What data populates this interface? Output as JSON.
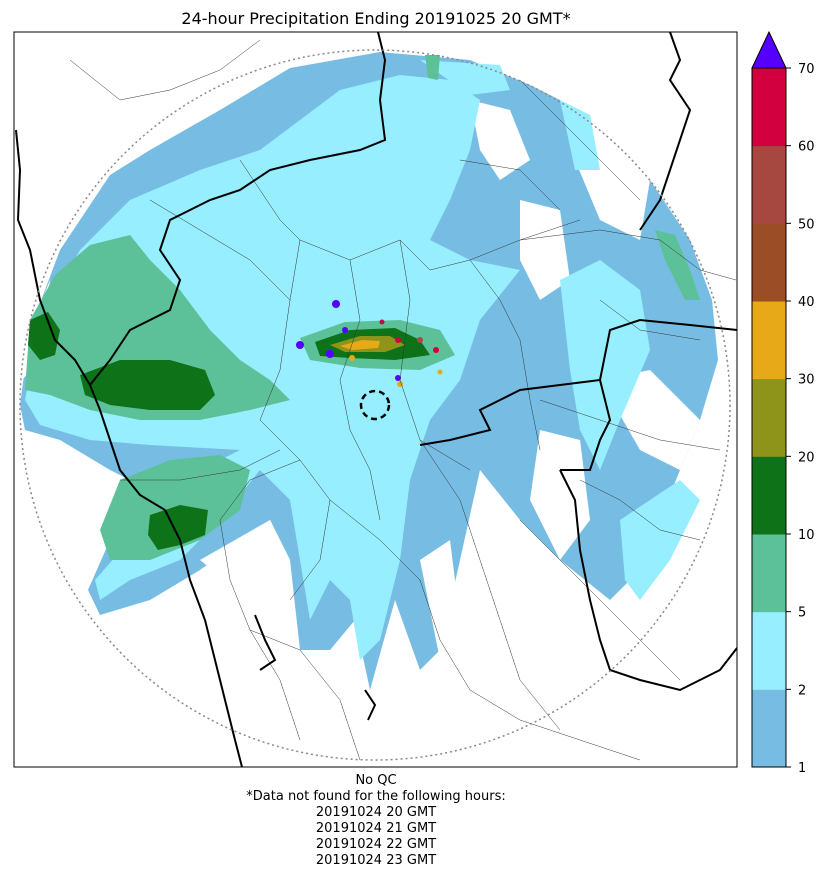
{
  "title": "24-hour Precipitation Ending 20191025 20 GMT*",
  "colorbar": {
    "ticks": [
      "1",
      "2",
      "5",
      "10",
      "20",
      "30",
      "40",
      "50",
      "60",
      "70"
    ],
    "bins": [
      {
        "from": 1,
        "to": 2,
        "color": "#77bde3"
      },
      {
        "from": 2,
        "to": 5,
        "color": "#96eeff"
      },
      {
        "from": 5,
        "to": 10,
        "color": "#5cc198"
      },
      {
        "from": 10,
        "to": 20,
        "color": "#0e7218"
      },
      {
        "from": 20,
        "to": 30,
        "color": "#8d9419"
      },
      {
        "from": 30,
        "to": 40,
        "color": "#e7a917"
      },
      {
        "from": 40,
        "to": 50,
        "color": "#9b4d25"
      },
      {
        "from": 50,
        "to": 60,
        "color": "#a6483f"
      },
      {
        "from": 60,
        "to": 70,
        "color": "#d3003f"
      }
    ],
    "extend_color": "#5500ff"
  },
  "footer": {
    "qc": "No QC",
    "missing_header": "*Data not found for the following hours:",
    "missing_hours": [
      "20191024 20 GMT",
      "20191024 21 GMT",
      "20191024 22 GMT",
      "20191024 23 GMT"
    ]
  }
}
